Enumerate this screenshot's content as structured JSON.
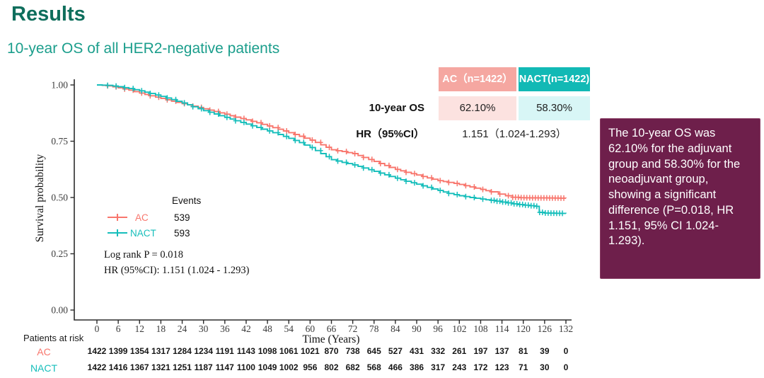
{
  "header": {
    "title": "Results",
    "subtitle": "10-year OS of all HER2-negative patients"
  },
  "summary_table": {
    "col_headers": [
      {
        "label": "AC（n=1422）"
      },
      {
        "label": "NACT(n=1422)"
      }
    ],
    "rows": [
      {
        "label": "10-year OS",
        "ac": "62.10%",
        "nact": "58.30%"
      },
      {
        "label": "HR（95%CI）",
        "value": "1.151（1.024-1.293）"
      }
    ]
  },
  "legend": {
    "events_header": "Events",
    "items": [
      {
        "name": "AC",
        "events": "539"
      },
      {
        "name": "NACT",
        "events": "593"
      }
    ],
    "logrank": "Log rank P = 0.018",
    "hr": "HR (95%CI): 1.151 (1.024 - 1.293)"
  },
  "callout": {
    "text": "The 10-year OS was 62.10% for the adjuvant group and 58.30% for the neoadjuvant group, showing a significant difference (P=0.018, HR 1.151, 95% CI 1.024-1.293)."
  },
  "risk_table": {
    "title": "Patients at risk",
    "rows": [
      {
        "label": "AC",
        "values": [
          1422,
          1399,
          1354,
          1317,
          1284,
          1234,
          1191,
          1143,
          1098,
          1061,
          1021,
          870,
          738,
          645,
          527,
          431,
          332,
          261,
          197,
          137,
          81,
          39,
          0
        ]
      },
      {
        "label": "NACT",
        "values": [
          1422,
          1416,
          1367,
          1321,
          1251,
          1187,
          1147,
          1100,
          1049,
          1002,
          956,
          802,
          682,
          568,
          466,
          386,
          317,
          243,
          172,
          123,
          71,
          30,
          0
        ]
      }
    ]
  },
  "colors": {
    "title": "#0E6E5C",
    "subtitle": "#1B9E8C",
    "ac": "#F8766D",
    "nact": "#16BEBB",
    "table_header_ac_bg": "#F5A7A1",
    "table_header_nact_bg": "#12B9B5",
    "table_cell_ac_bg": "#FCE2E0",
    "table_cell_nact_bg": "#D8F6F6",
    "callout_bg": "#6E1F4B"
  },
  "chart_data": {
    "type": "line",
    "subtype": "kaplan-meier-step",
    "title": "",
    "xlabel": "Time (Years)",
    "ylabel": "Survival probability",
    "xlim": [
      0,
      132
    ],
    "ylim": [
      0,
      1
    ],
    "xticks": [
      0,
      6,
      12,
      18,
      24,
      30,
      36,
      42,
      48,
      54,
      60,
      66,
      72,
      78,
      84,
      90,
      96,
      102,
      108,
      114,
      120,
      126,
      132
    ],
    "yticks": [
      1.0,
      0.75,
      0.5,
      0.25,
      0.0
    ],
    "grid": false,
    "legend_position": "inside-left",
    "series": [
      {
        "name": "AC",
        "color": "#F8766D",
        "events": 539,
        "censor_sparse_step": 2.4,
        "censor_dense_from": 117,
        "censor_dense_step": 0.8,
        "points": [
          [
            0,
            1.0
          ],
          [
            3,
            0.996
          ],
          [
            6,
            0.987
          ],
          [
            9,
            0.977
          ],
          [
            12,
            0.964
          ],
          [
            15,
            0.952
          ],
          [
            18,
            0.94
          ],
          [
            21,
            0.928
          ],
          [
            24,
            0.917
          ],
          [
            27,
            0.906
          ],
          [
            30,
            0.894
          ],
          [
            33,
            0.882
          ],
          [
            36,
            0.87
          ],
          [
            39,
            0.857
          ],
          [
            42,
            0.845
          ],
          [
            45,
            0.832
          ],
          [
            48,
            0.818
          ],
          [
            51,
            0.803
          ],
          [
            54,
            0.788
          ],
          [
            57,
            0.772
          ],
          [
            60,
            0.755
          ],
          [
            63,
            0.734
          ],
          [
            66,
            0.712
          ],
          [
            69,
            0.704
          ],
          [
            72,
            0.695
          ],
          [
            75,
            0.678
          ],
          [
            78,
            0.66
          ],
          [
            81,
            0.642
          ],
          [
            84,
            0.625
          ],
          [
            87,
            0.612
          ],
          [
            90,
            0.6
          ],
          [
            93,
            0.587
          ],
          [
            96,
            0.575
          ],
          [
            99,
            0.567
          ],
          [
            102,
            0.558
          ],
          [
            105,
            0.547
          ],
          [
            108,
            0.536
          ],
          [
            111,
            0.525
          ],
          [
            113,
            0.515
          ],
          [
            115,
            0.508
          ],
          [
            117,
            0.501
          ],
          [
            119,
            0.499
          ],
          [
            132,
            0.497
          ]
        ]
      },
      {
        "name": "NACT",
        "color": "#16BEBB",
        "events": 593,
        "censor_sparse_step": 2.4,
        "censor_dense_from": 111,
        "censor_dense_step": 0.8,
        "points": [
          [
            0,
            1.0
          ],
          [
            3,
            0.998
          ],
          [
            6,
            0.992
          ],
          [
            9,
            0.984
          ],
          [
            12,
            0.974
          ],
          [
            15,
            0.962
          ],
          [
            18,
            0.949
          ],
          [
            21,
            0.935
          ],
          [
            24,
            0.92
          ],
          [
            27,
            0.903
          ],
          [
            30,
            0.886
          ],
          [
            33,
            0.871
          ],
          [
            36,
            0.856
          ],
          [
            39,
            0.841
          ],
          [
            42,
            0.826
          ],
          [
            45,
            0.811
          ],
          [
            48,
            0.796
          ],
          [
            51,
            0.78
          ],
          [
            54,
            0.763
          ],
          [
            57,
            0.744
          ],
          [
            60,
            0.722
          ],
          [
            63,
            0.695
          ],
          [
            66,
            0.668
          ],
          [
            69,
            0.656
          ],
          [
            72,
            0.645
          ],
          [
            75,
            0.631
          ],
          [
            78,
            0.616
          ],
          [
            81,
            0.601
          ],
          [
            84,
            0.586
          ],
          [
            87,
            0.572
          ],
          [
            90,
            0.559
          ],
          [
            93,
            0.545
          ],
          [
            96,
            0.531
          ],
          [
            99,
            0.518
          ],
          [
            102,
            0.508
          ],
          [
            105,
            0.5
          ],
          [
            108,
            0.493
          ],
          [
            111,
            0.487
          ],
          [
            114,
            0.48
          ],
          [
            117,
            0.472
          ],
          [
            120,
            0.466
          ],
          [
            123,
            0.461
          ],
          [
            124.5,
            0.434
          ],
          [
            126,
            0.431
          ],
          [
            132,
            0.429
          ]
        ]
      }
    ]
  }
}
